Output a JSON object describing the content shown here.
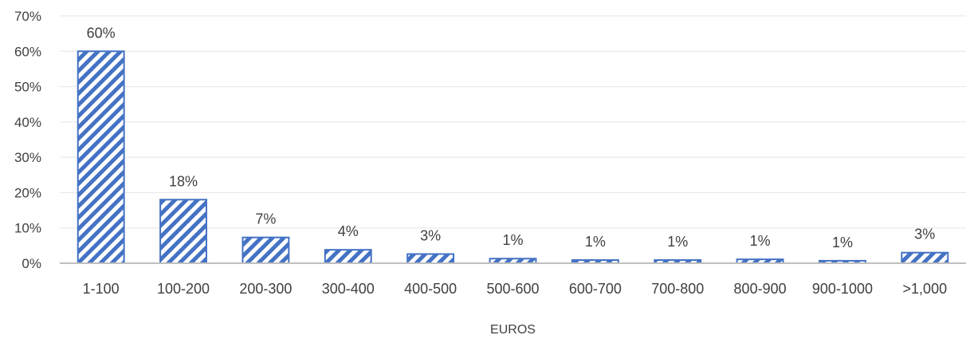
{
  "chart_data": {
    "type": "bar",
    "title": "",
    "xlabel": "EUROS",
    "ylabel": "",
    "categories": [
      "1-100",
      "100-200",
      "200-300",
      "300-400",
      "400-500",
      "500-600",
      "600-700",
      "700-800",
      "800-900",
      "900-1000",
      ">1,000"
    ],
    "values": [
      60,
      18,
      7.3,
      3.8,
      2.6,
      1.3,
      0.9,
      0.9,
      1.1,
      0.7,
      3.0
    ],
    "data_labels": [
      "60%",
      "18%",
      "7%",
      "4%",
      "3%",
      "1%",
      "1%",
      "1%",
      "1%",
      "1%",
      "3%"
    ],
    "ylim": [
      0,
      70
    ],
    "yticks": [
      0,
      10,
      20,
      30,
      40,
      50,
      60,
      70
    ],
    "ytick_labels": [
      "0%",
      "10%",
      "20%",
      "30%",
      "40%",
      "50%",
      "60%",
      "70%"
    ],
    "grid": true,
    "legend": "none",
    "colors": {
      "bar": "#4472C4",
      "grid": "#e6e6e6",
      "axis": "#bfbfbf"
    },
    "pattern": "diagonal-stripes"
  }
}
